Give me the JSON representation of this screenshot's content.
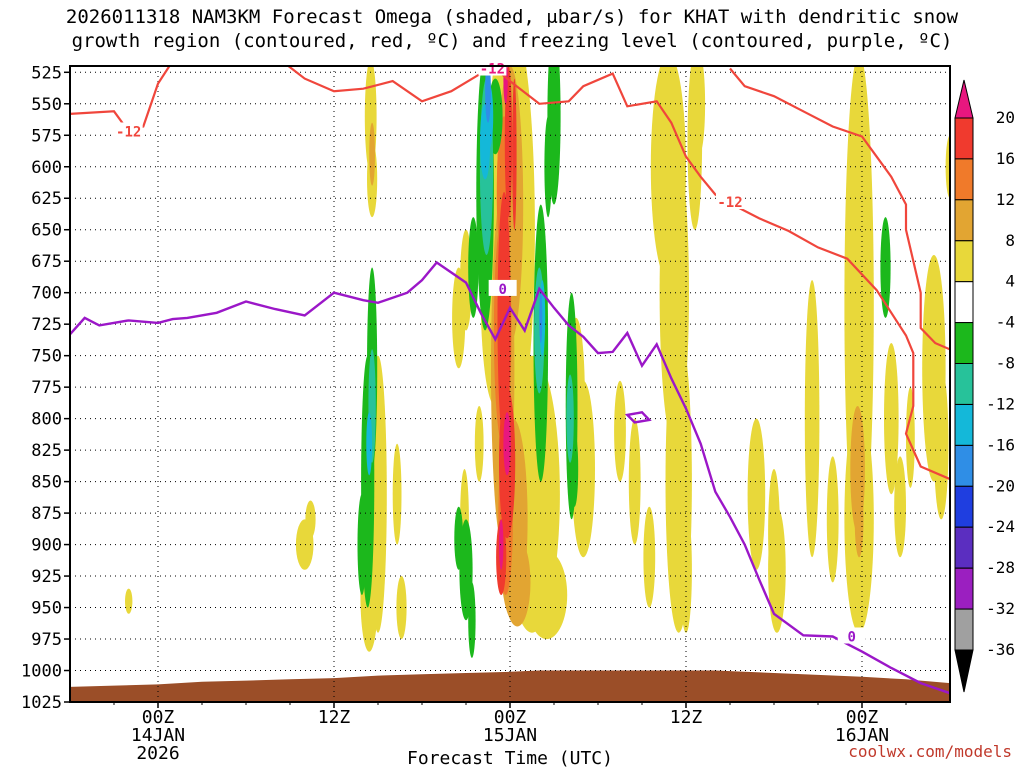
{
  "title_line1": "2026011318 NAM3KM Forecast Omega (shaded, μbar/s) for KHAT with dendritic snow",
  "title_line2": "growth region (contoured, red, ºC) and freezing level (contoured, purple, ºC)",
  "credit": "coolwx.com/models",
  "chart_data": {
    "type": "heatmap",
    "xlabel": "Forecast Time (UTC)",
    "x_ticks": [
      {
        "hour": 6,
        "label1": "00Z",
        "label2": "14JAN",
        "label3": "2026"
      },
      {
        "hour": 18,
        "label1": "12Z",
        "label2": "",
        "label3": ""
      },
      {
        "hour": 30,
        "label1": "00Z",
        "label2": "15JAN",
        "label3": ""
      },
      {
        "hour": 42,
        "label1": "12Z",
        "label2": "",
        "label3": ""
      },
      {
        "hour": 54,
        "label1": "00Z",
        "label2": "16JAN",
        "label3": ""
      }
    ],
    "xlim": [
      0,
      60
    ],
    "y_levels": [
      525,
      550,
      575,
      600,
      625,
      650,
      675,
      700,
      725,
      750,
      775,
      800,
      825,
      850,
      875,
      900,
      925,
      950,
      975,
      1000,
      1025
    ],
    "ylim": [
      520,
      1025
    ],
    "colorbar": {
      "labels": [
        20,
        16,
        12,
        8,
        4,
        -4,
        -8,
        -12,
        -16,
        -20,
        -24,
        -28,
        -32,
        -36
      ],
      "colors": [
        "#e8177f",
        "#f03a2e",
        "#f07a2a",
        "#e2a532",
        "#e8d83a",
        "#ffffff",
        "#1cb81c",
        "#27c29a",
        "#14b8d9",
        "#2f8ee6",
        "#1f3ee0",
        "#5b2ec0",
        "#9b1fc0",
        "#a0a0a0",
        "#000000"
      ]
    },
    "dgz_contour_label": "-12",
    "freezing_contour_label": "0",
    "dgz_contour": [
      [
        0,
        558
      ],
      [
        3,
        556
      ],
      [
        4,
        572
      ],
      [
        5,
        568
      ],
      [
        6,
        534
      ],
      [
        7,
        516
      ],
      [
        8,
        512
      ],
      [
        10,
        512
      ],
      [
        12,
        508
      ],
      [
        14,
        512
      ],
      [
        16,
        530
      ],
      [
        18,
        540
      ],
      [
        20,
        538
      ],
      [
        22,
        532
      ],
      [
        24,
        548
      ],
      [
        26,
        540
      ],
      [
        28,
        526
      ],
      [
        29,
        522
      ],
      [
        30,
        532
      ],
      [
        32,
        550
      ],
      [
        34,
        548
      ],
      [
        35,
        536
      ],
      [
        37,
        526
      ],
      [
        38,
        552
      ],
      [
        40,
        548
      ],
      [
        41,
        565
      ],
      [
        42,
        592
      ],
      [
        43,
        608
      ],
      [
        44,
        622
      ],
      [
        45,
        629
      ],
      [
        47,
        641
      ],
      [
        49,
        651
      ],
      [
        51,
        664
      ],
      [
        53,
        673
      ],
      [
        55,
        698
      ],
      [
        57,
        734
      ],
      [
        57.5,
        748
      ],
      [
        57.5,
        790
      ],
      [
        57,
        812
      ],
      [
        58,
        838
      ],
      [
        60,
        848
      ]
    ],
    "dgz_contour_upper": [
      [
        45,
        522
      ],
      [
        46,
        536
      ],
      [
        48,
        544
      ],
      [
        50,
        556
      ],
      [
        52,
        568
      ],
      [
        54,
        576
      ],
      [
        55,
        592
      ],
      [
        56,
        608
      ],
      [
        57,
        630
      ],
      [
        57,
        650
      ],
      [
        58,
        700
      ],
      [
        58,
        728
      ],
      [
        59,
        740
      ],
      [
        60,
        745
      ]
    ],
    "freezing_contour": [
      [
        0,
        733
      ],
      [
        1,
        720
      ],
      [
        2,
        726
      ],
      [
        4,
        722
      ],
      [
        6,
        724
      ],
      [
        7,
        721
      ],
      [
        8,
        720
      ],
      [
        10,
        716
      ],
      [
        12,
        707
      ],
      [
        14,
        713
      ],
      [
        16,
        718
      ],
      [
        18,
        700
      ],
      [
        20,
        706
      ],
      [
        21,
        708
      ],
      [
        22,
        704
      ],
      [
        23,
        700
      ],
      [
        24,
        690
      ],
      [
        25,
        676
      ],
      [
        26,
        684
      ],
      [
        27,
        692
      ],
      [
        28,
        716
      ],
      [
        29,
        737
      ],
      [
        30,
        712
      ],
      [
        31,
        730
      ],
      [
        32,
        697
      ],
      [
        33,
        712
      ],
      [
        34,
        726
      ],
      [
        35,
        735
      ],
      [
        36,
        748
      ],
      [
        37,
        747
      ],
      [
        38,
        732
      ],
      [
        39,
        758
      ],
      [
        40,
        741
      ],
      [
        41,
        768
      ],
      [
        42,
        792
      ],
      [
        43,
        820
      ],
      [
        44,
        858
      ],
      [
        45,
        878
      ],
      [
        46,
        900
      ],
      [
        47,
        928
      ],
      [
        48,
        955
      ],
      [
        50,
        972
      ],
      [
        52,
        973
      ],
      [
        54,
        985
      ],
      [
        56,
        998
      ],
      [
        58,
        1010
      ],
      [
        60,
        1018
      ]
    ],
    "freezing_island": [
      [
        38,
        797
      ],
      [
        39,
        795
      ],
      [
        39.5,
        801
      ],
      [
        38.5,
        803
      ]
    ]
  }
}
